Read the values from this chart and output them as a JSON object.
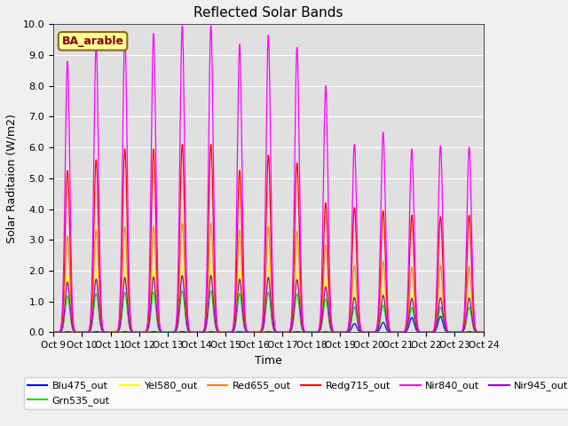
{
  "title": "Reflected Solar Bands",
  "xlabel": "Time",
  "ylabel": "Solar Raditaion (W/m2)",
  "ylim": [
    0,
    10.0
  ],
  "background_color": "#e0e0e0",
  "fig_bg": "#f0f0f0",
  "annotation_text": "BA_arable",
  "annotation_bg": "#ffff99",
  "annotation_border": "#8b6914",
  "series": [
    {
      "label": "Blu475_out",
      "color": "#0000ff"
    },
    {
      "label": "Grn535_out",
      "color": "#00dd00"
    },
    {
      "label": "Yel580_out",
      "color": "#ffff00"
    },
    {
      "label": "Red655_out",
      "color": "#ff8800"
    },
    {
      "label": "Redg715_out",
      "color": "#ff0000"
    },
    {
      "label": "Nir840_out",
      "color": "#ff00ff"
    },
    {
      "label": "Nir945_out",
      "color": "#9900cc"
    }
  ],
  "n_days": 15,
  "start_day": 9,
  "tick_days": [
    9,
    10,
    11,
    12,
    13,
    14,
    15,
    16,
    17,
    18,
    19,
    20,
    21,
    22,
    23,
    24
  ],
  "nir840_peaks": [
    8.8,
    9.35,
    9.6,
    9.7,
    9.95,
    9.95,
    9.35,
    9.65,
    9.25,
    8.0,
    6.1,
    6.5,
    5.95,
    6.05,
    6.0
  ],
  "redg715_peaks": [
    5.25,
    5.6,
    5.95,
    5.95,
    6.1,
    6.1,
    5.25,
    5.75,
    5.5,
    4.2,
    4.05,
    3.95,
    3.8,
    3.75,
    3.8
  ],
  "red655_scale": 0.355,
  "yel580_scale": 0.215,
  "grn535_scale": 0.135,
  "blu475_scale": 0.002,
  "nir945_scale": 0.185,
  "sigma": 0.08,
  "n_pts": 2000
}
